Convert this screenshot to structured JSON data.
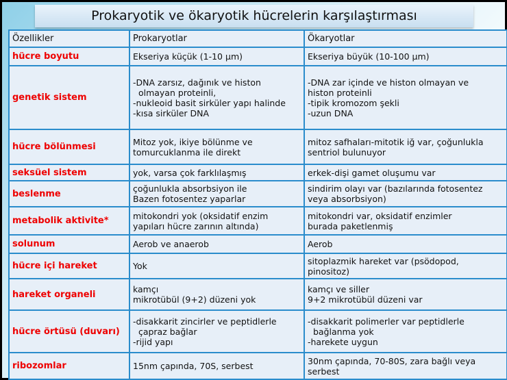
{
  "title": "Prokaryotik ve ökaryotik hücrelerin karşılaştırması",
  "headers": [
    "Özellikler",
    "Prokaryotlar",
    "Ökaryotlar"
  ],
  "rows": [
    {
      "feature": "hücre boyutu",
      "prokaryot": [
        "Ekseriya küçük (1-10 μm)"
      ],
      "okaryot": [
        "Ekseriya büyük (10-100 μm)"
      ]
    },
    {
      "feature": "genetik sistem",
      "prokaryot": [
        "-DNA zarsız, dağınık ve histon",
        "  olmayan proteinli,",
        "-nukleoid basit sirküler yapı halinde",
        "-kısa sirküler DNA"
      ],
      "okaryot": [
        "-DNA zar içinde ve histon olmayan ve",
        "histon proteinli",
        "-tipik kromozom şekli",
        "-uzun DNA"
      ]
    },
    {
      "feature": "hücre bölünmesi",
      "prokaryot": [
        "Mitoz yok, ikiye bölünme ve",
        "tomurcuklanma ile direkt"
      ],
      "okaryot": [
        "mitoz safhaları-mitotik iğ var, çoğunlukla",
        "sentriol bulunuyor"
      ]
    },
    {
      "feature": "seksüel sistem",
      "prokaryot": [
        "yok, varsa çok farklılaşmış"
      ],
      "okaryot": [
        "erkek-dişi gamet oluşumu var"
      ]
    },
    {
      "feature": "beslenme",
      "prokaryot": [
        "çoğunlukla absorbsiyon ile",
        "Bazen fotosentez yaparlar"
      ],
      "okaryot": [
        "sindirim olayı var (bazılarında fotosentez",
        "veya absorbsiyon)"
      ]
    },
    {
      "feature": "metabolik aktivite*",
      "prokaryot": [
        "mitokondri yok (oksidatif enzim",
        "yapıları hücre zarının altında)"
      ],
      "okaryot": [
        "mitokondri var, oksidatif enzimler",
        "burada paketlenmiş"
      ]
    },
    {
      "feature": "solunum",
      "prokaryot": [
        "Aerob ve anaerob"
      ],
      "okaryot": [
        "Aerob"
      ]
    },
    {
      "feature": "hücre içi hareket",
      "prokaryot": [
        "Yok"
      ],
      "okaryot": [
        "sitoplazmik hareket var (psödopod,",
        "pinositoz)"
      ]
    },
    {
      "feature": "hareket organeli",
      "prokaryot": [
        "kamçı",
        "mikrotübül (9+2) düzeni yok"
      ],
      "okaryot": [
        "kamçı ve siller",
        "9+2 mikrotübül düzeni var"
      ]
    },
    {
      "feature": "hücre örtüsü (duvarı)",
      "prokaryot": [
        "-disakkarit zincirler ve peptidlerle",
        "  çapraz bağlar",
        "-rijid yapı"
      ],
      "okaryot": [
        "-disakkarit polimerler var peptidlerle",
        "  bağlanma yok",
        "-harekete uygun"
      ]
    },
    {
      "feature": "ribozomlar",
      "prokaryot": [
        "15nm çapında, 70S, serbest"
      ],
      "okaryot": [
        "30nm çapında, 70-80S, zara bağlı veya",
        "serbest"
      ]
    }
  ]
}
